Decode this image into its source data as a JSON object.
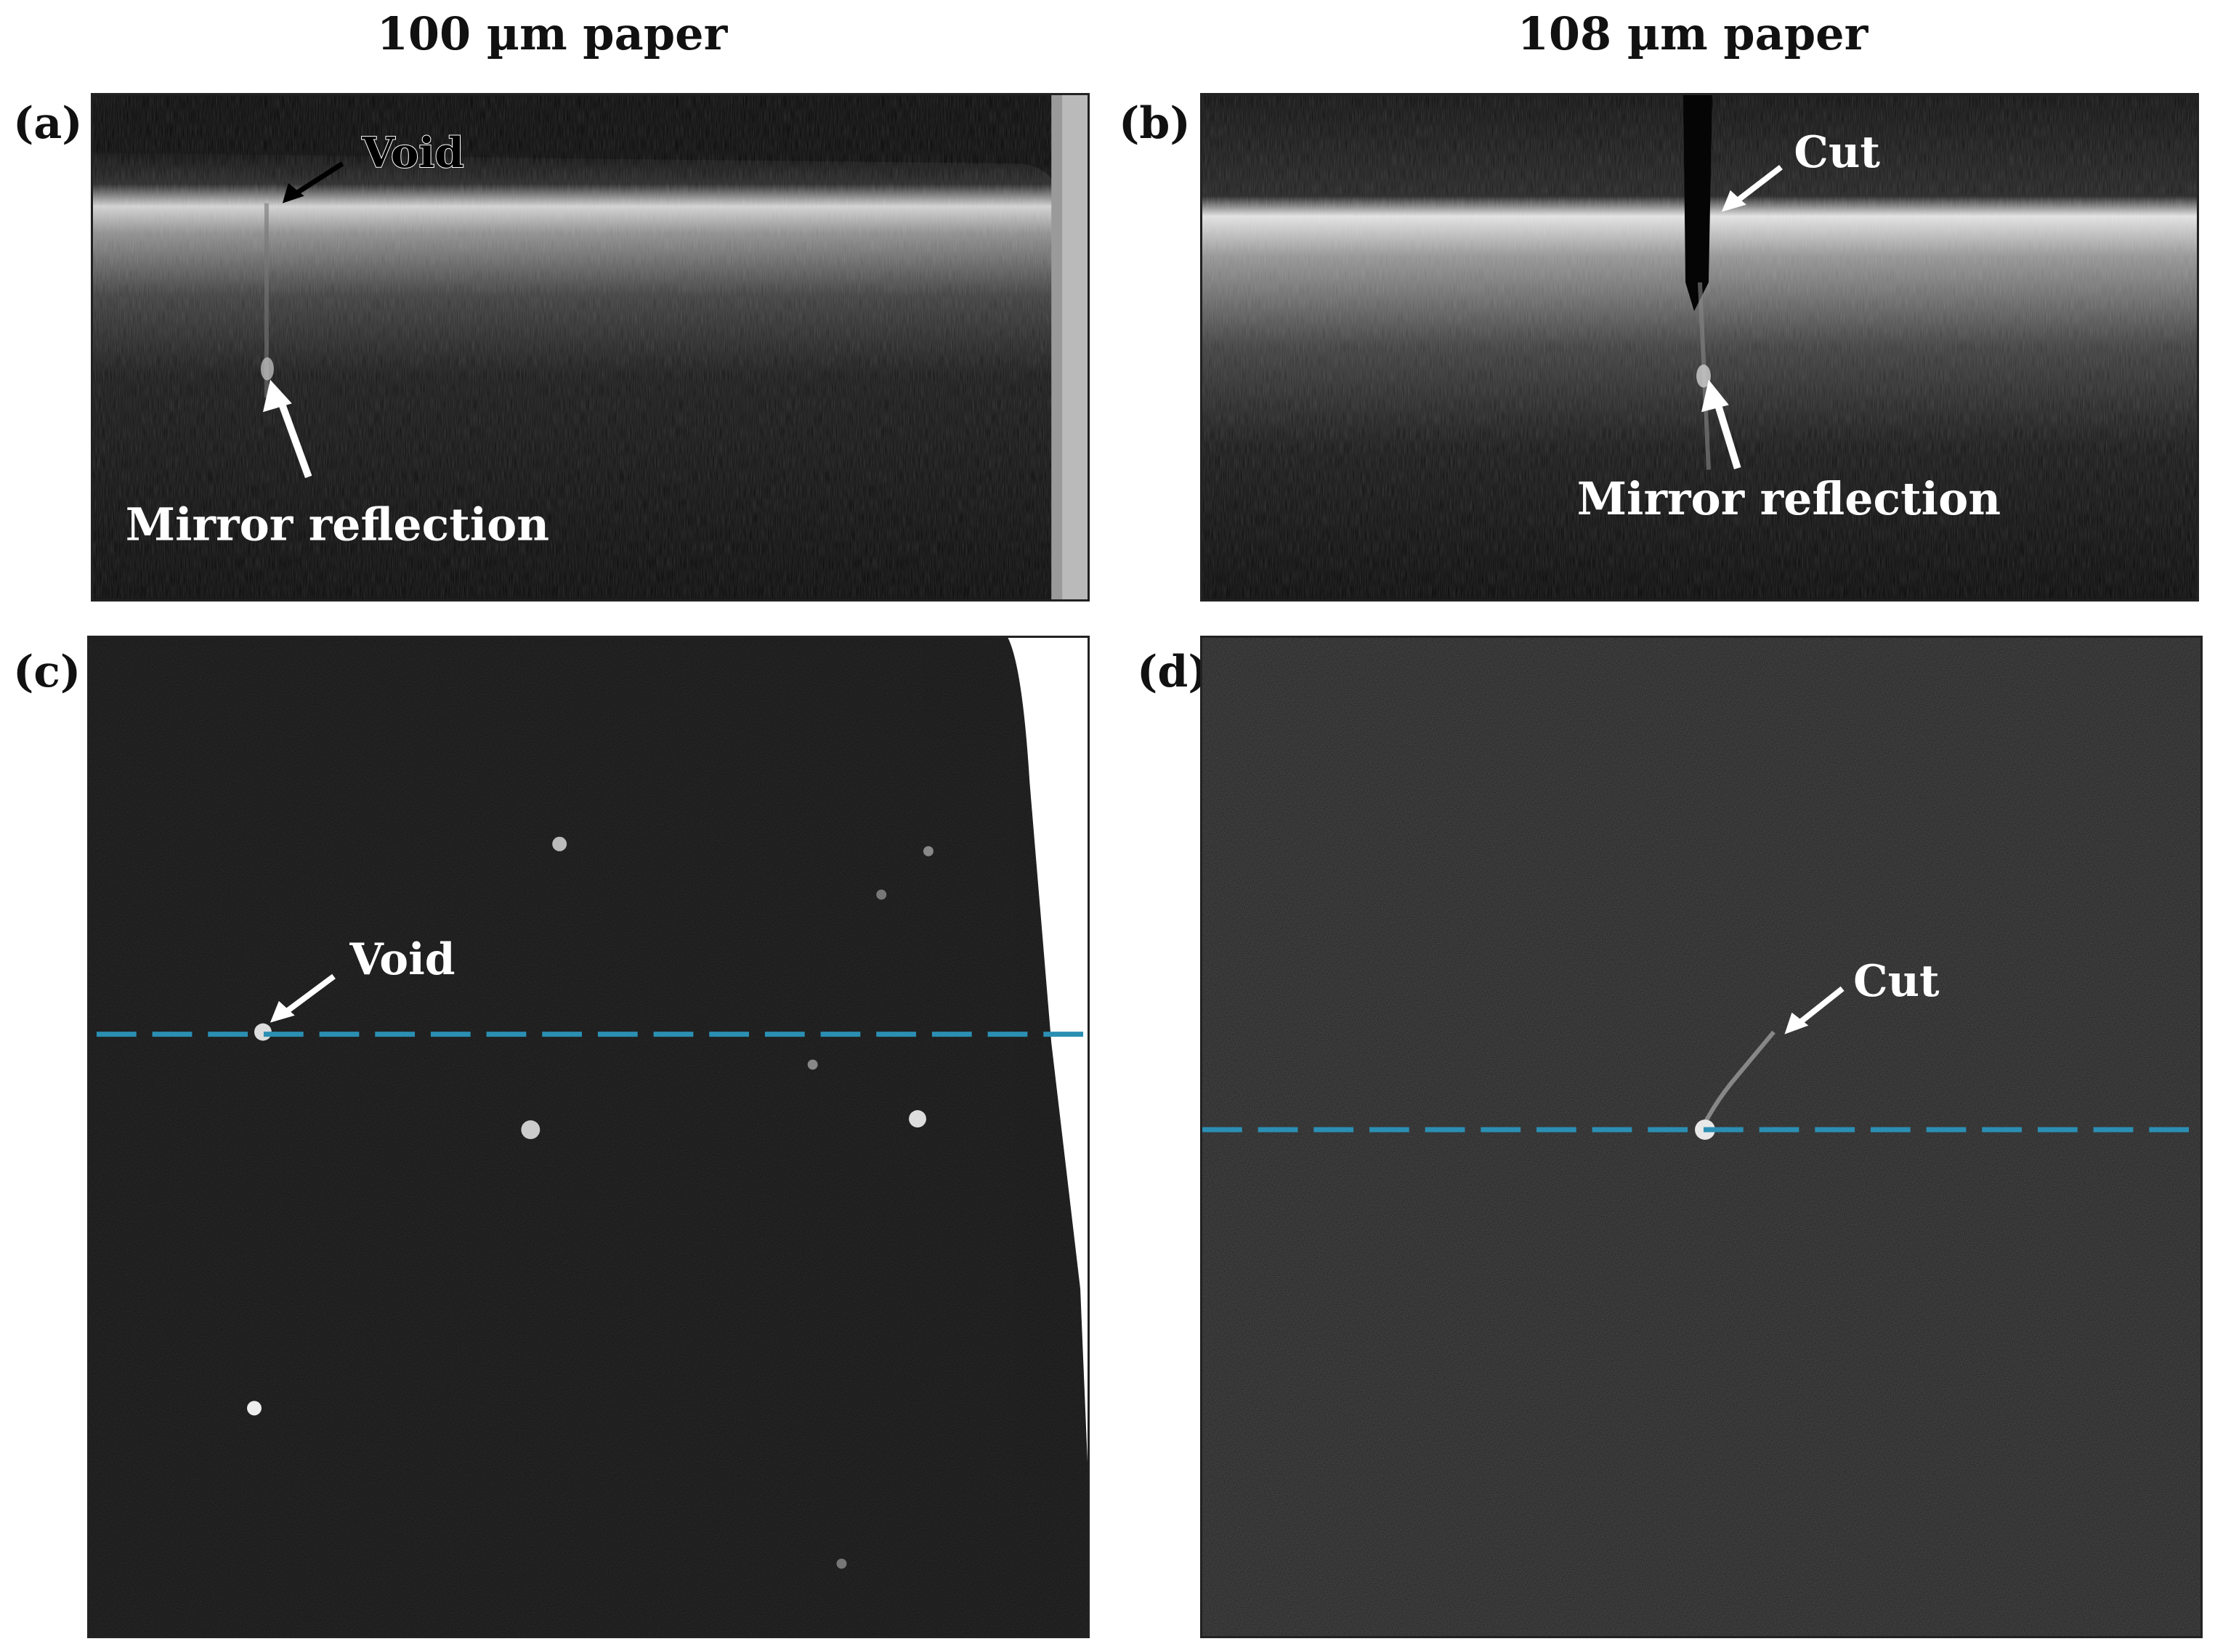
{
  "columns": {
    "left_title": "100 µm paper",
    "right_title": "108 µm paper"
  },
  "panels": {
    "a": {
      "label": "(a)",
      "annotations": {
        "void": "Void",
        "mirror": "Mirror reflection"
      }
    },
    "b": {
      "label": "(b)",
      "annotations": {
        "cut": "Cut",
        "mirror": "Mirror reflection"
      }
    },
    "c": {
      "label": "(c)",
      "annotations": {
        "void": "Void"
      }
    },
    "d": {
      "label": "(d)",
      "annotations": {
        "cut": "Cut"
      }
    }
  },
  "colors": {
    "dashed_line": "#2b8fb3",
    "annotation_light": "#ffffff",
    "annotation_dark": "#000000"
  }
}
